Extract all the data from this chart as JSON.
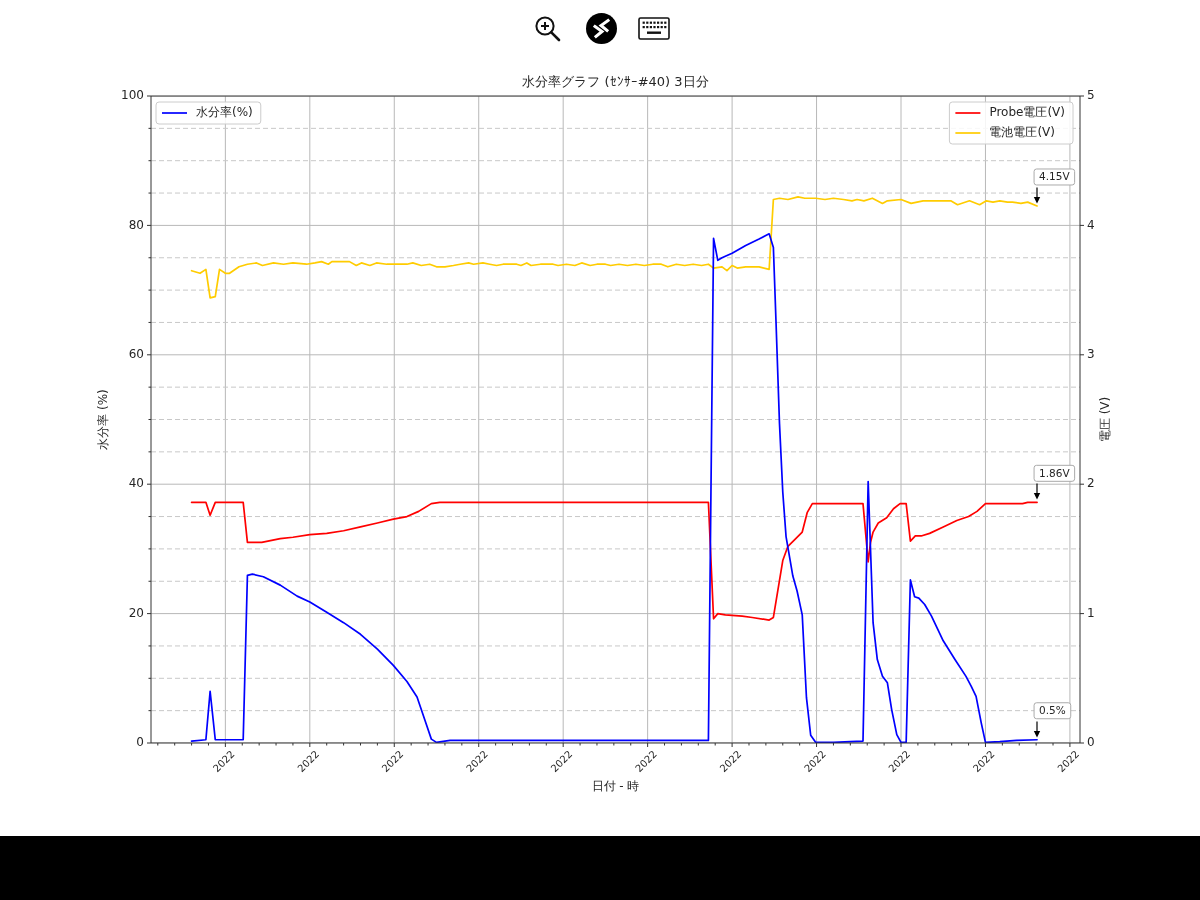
{
  "chart_data": {
    "type": "line",
    "title": "水分率グラフ (ｾﾝｻｰ#40) 3日分",
    "xlabel": "日付 - 時",
    "ylabel": "水分率 (%)",
    "y2label": "電圧 (V)",
    "xlim": [
      "2022-05-31T18:43",
      "2022-06-03T12:43"
    ],
    "xticks": [
      {
        "value": "2022-05-31T19:12",
        "label": null
      },
      {
        "value": "2022-05-31T20:24",
        "label": null
      },
      {
        "value": "2022-05-31T21:36",
        "label": null
      },
      {
        "value": "2022-05-31T22:48",
        "label": null
      },
      {
        "value": "2022-06-01T00:00",
        "label": "2022"
      },
      {
        "value": "2022-06-01T01:12",
        "label": null
      },
      {
        "value": "2022-06-01T02:24",
        "label": null
      },
      {
        "value": "2022-06-01T03:36",
        "label": null
      },
      {
        "value": "2022-06-01T04:48",
        "label": null
      },
      {
        "value": "2022-06-01T06:00",
        "label": "2022"
      },
      {
        "value": "2022-06-01T07:12",
        "label": null
      },
      {
        "value": "2022-06-01T08:24",
        "label": null
      },
      {
        "value": "2022-06-01T09:36",
        "label": null
      },
      {
        "value": "2022-06-01T10:48",
        "label": null
      },
      {
        "value": "2022-06-01T12:00",
        "label": "2022"
      },
      {
        "value": "2022-06-01T13:12",
        "label": null
      },
      {
        "value": "2022-06-01T14:24",
        "label": null
      },
      {
        "value": "2022-06-01T15:36",
        "label": null
      },
      {
        "value": "2022-06-01T16:48",
        "label": null
      },
      {
        "value": "2022-06-01T18:00",
        "label": "2022"
      },
      {
        "value": "2022-06-01T19:12",
        "label": null
      },
      {
        "value": "2022-06-01T20:24",
        "label": null
      },
      {
        "value": "2022-06-01T21:36",
        "label": null
      },
      {
        "value": "2022-06-01T22:48",
        "label": null
      },
      {
        "value": "2022-06-02T00:00",
        "label": "2022"
      },
      {
        "value": "2022-06-02T01:12",
        "label": null
      },
      {
        "value": "2022-06-02T02:24",
        "label": null
      },
      {
        "value": "2022-06-02T03:36",
        "label": null
      },
      {
        "value": "2022-06-02T04:48",
        "label": null
      },
      {
        "value": "2022-06-02T06:00",
        "label": "2022"
      },
      {
        "value": "2022-06-02T07:12",
        "label": null
      },
      {
        "value": "2022-06-02T08:24",
        "label": null
      },
      {
        "value": "2022-06-02T09:36",
        "label": null
      },
      {
        "value": "2022-06-02T10:48",
        "label": null
      },
      {
        "value": "2022-06-02T12:00",
        "label": "2022"
      },
      {
        "value": "2022-06-02T13:12",
        "label": null
      },
      {
        "value": "2022-06-02T14:24",
        "label": null
      },
      {
        "value": "2022-06-02T15:36",
        "label": null
      },
      {
        "value": "2022-06-02T16:48",
        "label": null
      },
      {
        "value": "2022-06-02T18:00",
        "label": "2022"
      },
      {
        "value": "2022-06-02T19:12",
        "label": null
      },
      {
        "value": "2022-06-02T20:24",
        "label": null
      },
      {
        "value": "2022-06-02T21:36",
        "label": null
      },
      {
        "value": "2022-06-02T22:48",
        "label": null
      },
      {
        "value": "2022-06-03T00:00",
        "label": "2022"
      },
      {
        "value": "2022-06-03T01:12",
        "label": null
      },
      {
        "value": "2022-06-03T02:24",
        "label": null
      },
      {
        "value": "2022-06-03T03:36",
        "label": null
      },
      {
        "value": "2022-06-03T04:48",
        "label": null
      },
      {
        "value": "2022-06-03T06:00",
        "label": "2022"
      },
      {
        "value": "2022-06-03T07:12",
        "label": null
      },
      {
        "value": "2022-06-03T08:24",
        "label": null
      },
      {
        "value": "2022-06-03T09:36",
        "label": null
      },
      {
        "value": "2022-06-03T10:48",
        "label": null
      },
      {
        "value": "2022-06-03T12:00",
        "label": "2022"
      }
    ],
    "ylim": [
      0,
      100
    ],
    "yticks": [
      0,
      {
        "value": 5,
        "label": null
      },
      {
        "value": 10,
        "label": null
      },
      {
        "value": 15,
        "label": null
      },
      20,
      {
        "value": 25,
        "label": null
      },
      {
        "value": 30,
        "label": null
      },
      {
        "value": 35,
        "label": null
      },
      40,
      {
        "value": 45,
        "label": null
      },
      {
        "value": 50,
        "label": null
      },
      {
        "value": 55,
        "label": null
      },
      60,
      {
        "value": 65,
        "label": null
      },
      {
        "value": 70,
        "label": null
      },
      {
        "value": 75,
        "label": null
      },
      80,
      {
        "value": 85,
        "label": null
      },
      {
        "value": 90,
        "label": null
      },
      {
        "value": 95,
        "label": null
      },
      100
    ],
    "y2lim": [
      0,
      5
    ],
    "y2ticks": [
      0,
      1,
      2,
      3,
      4,
      5
    ],
    "grid": true,
    "legend": "top",
    "marker": "none",
    "series": [
      {
        "name": "水分率(%)",
        "color": "#0000ff",
        "x": [
          "2022-05-31T21:36",
          "2022-05-31T22:37",
          "2022-05-31T22:55",
          "2022-05-31T23:17",
          "2022-06-01T01:16",
          "2022-06-01T01:34",
          "2022-06-01T01:55",
          "2022-06-01T02:42",
          "2022-06-01T03:54",
          "2022-06-01T05:06",
          "2022-06-01T06:00",
          "2022-06-01T07:12",
          "2022-06-01T08:24",
          "2022-06-01T09:36",
          "2022-06-01T10:48",
          "2022-06-01T11:56",
          "2022-06-01T12:54",
          "2022-06-01T13:37",
          "2022-06-01T14:10",
          "2022-06-01T14:38",
          "2022-06-01T15:00",
          "2022-06-01T15:58",
          "2022-06-02T10:19",
          "2022-06-02T10:41",
          "2022-06-02T10:59",
          "2022-06-02T11:17",
          "2022-06-02T12:00",
          "2022-06-02T12:58",
          "2022-06-02T13:55",
          "2022-06-02T14:38",
          "2022-06-02T14:56",
          "2022-06-02T15:07",
          "2022-06-02T15:22",
          "2022-06-02T15:36",
          "2022-06-02T15:50",
          "2022-06-02T16:19",
          "2022-06-02T16:37",
          "2022-06-02T16:59",
          "2022-06-02T17:17",
          "2022-06-02T17:35",
          "2022-06-02T17:56",
          "2022-06-02T19:12",
          "2022-06-02T20:24",
          "2022-06-02T21:18",
          "2022-06-02T21:40",
          "2022-06-02T22:01",
          "2022-06-02T22:19",
          "2022-06-02T22:41",
          "2022-06-02T23:02",
          "2022-06-02T23:20",
          "2022-06-02T23:42",
          "2022-06-03T00:00",
          "2022-06-03T00:22",
          "2022-06-03T00:40",
          "2022-06-03T00:58",
          "2022-06-03T01:16",
          "2022-06-03T01:41",
          "2022-06-03T02:10",
          "2022-06-03T03:00",
          "2022-06-03T03:50",
          "2022-06-03T04:37",
          "2022-06-03T04:59",
          "2022-06-03T05:20",
          "2022-06-03T05:42",
          "2022-06-03T06:00",
          "2022-06-03T07:01",
          "2022-06-03T08:13",
          "2022-06-03T09:40"
        ],
        "values": [
          0.3,
          0.5,
          8.0,
          0.5,
          0.5,
          25.9,
          26.1,
          25.7,
          24.4,
          22.7,
          21.8,
          20.2,
          18.6,
          16.8,
          14.5,
          12.0,
          9.5,
          7.1,
          3.6,
          0.6,
          0.1,
          0.4,
          0.4,
          78.0,
          74.6,
          75.0,
          75.7,
          76.9,
          77.9,
          78.7,
          76.6,
          65.3,
          49.4,
          38.8,
          31.9,
          25.8,
          23.5,
          19.8,
          7.0,
          1.2,
          0.1,
          0.1,
          0.2,
          0.3,
          40.4,
          18.6,
          12.9,
          10.3,
          9.3,
          5.2,
          1.3,
          0.1,
          0.1,
          25.2,
          22.6,
          22.4,
          21.4,
          19.6,
          15.8,
          12.9,
          10.3,
          8.8,
          7.2,
          3.1,
          0.1,
          0.2,
          0.4,
          0.5
        ]
      },
      {
        "name": "Probe電圧(V)",
        "color": "#ff0000",
        "axis": "y2",
        "x": [
          "2022-05-31T21:36",
          "2022-05-31T22:37",
          "2022-05-31T22:55",
          "2022-05-31T23:17",
          "2022-06-01T01:16",
          "2022-06-01T01:34",
          "2022-06-01T02:35",
          "2022-06-01T03:54",
          "2022-06-01T04:48",
          "2022-06-01T06:00",
          "2022-06-01T07:12",
          "2022-06-01T08:24",
          "2022-06-01T09:36",
          "2022-06-01T10:48",
          "2022-06-01T11:56",
          "2022-06-01T12:54",
          "2022-06-01T13:44",
          "2022-06-01T14:38",
          "2022-06-01T15:14",
          "2022-06-02T10:19",
          "2022-06-02T10:41",
          "2022-06-02T10:59",
          "2022-06-02T11:31",
          "2022-06-02T12:43",
          "2022-06-02T13:26",
          "2022-06-02T14:38",
          "2022-06-02T14:56",
          "2022-06-02T15:36",
          "2022-06-02T15:58",
          "2022-06-02T16:26",
          "2022-06-02T16:59",
          "2022-06-02T17:20",
          "2022-06-02T17:42",
          "2022-06-02T21:18",
          "2022-06-02T21:40",
          "2022-06-02T21:50",
          "2022-06-02T22:01",
          "2022-06-02T22:23",
          "2022-06-02T22:59",
          "2022-06-02T23:28",
          "2022-06-02T23:56",
          "2022-06-03T00:22",
          "2022-06-03T00:40",
          "2022-06-03T01:01",
          "2022-06-03T01:26",
          "2022-06-03T02:02",
          "2022-06-03T03:00",
          "2022-06-03T03:58",
          "2022-06-03T04:48",
          "2022-06-03T05:24",
          "2022-06-03T06:00",
          "2022-06-03T08:38",
          "2022-06-03T09:00",
          "2022-06-03T09:40"
        ],
        "values": [
          1.86,
          1.86,
          1.76,
          1.86,
          1.86,
          1.55,
          1.55,
          1.58,
          1.59,
          1.61,
          1.62,
          1.64,
          1.67,
          1.7,
          1.73,
          1.75,
          1.79,
          1.85,
          1.86,
          1.86,
          0.96,
          1.0,
          0.99,
          0.98,
          0.97,
          0.95,
          0.97,
          1.41,
          1.52,
          1.57,
          1.63,
          1.78,
          1.85,
          1.85,
          1.4,
          1.55,
          1.63,
          1.7,
          1.74,
          1.81,
          1.85,
          1.85,
          1.56,
          1.6,
          1.6,
          1.62,
          1.67,
          1.72,
          1.75,
          1.79,
          1.85,
          1.85,
          1.86,
          1.86
        ]
      },
      {
        "name": "電池電圧(V)",
        "color": "#ffcc00",
        "axis": "y2",
        "x": [
          "2022-05-31T21:36",
          "2022-05-31T22:12",
          "2022-05-31T22:37",
          "2022-05-31T22:55",
          "2022-05-31T23:17",
          "2022-05-31T23:35",
          "2022-06-01T00:00",
          "2022-06-01T00:18",
          "2022-06-01T00:58",
          "2022-06-01T01:34",
          "2022-06-01T02:13",
          "2022-06-01T02:38",
          "2022-06-01T03:25",
          "2022-06-01T04:08",
          "2022-06-01T04:48",
          "2022-06-01T05:46",
          "2022-06-01T06:22",
          "2022-06-01T06:50",
          "2022-06-01T07:19",
          "2022-06-01T07:34",
          "2022-06-01T08:49",
          "2022-06-01T09:18",
          "2022-06-01T09:40",
          "2022-06-01T10:16",
          "2022-06-01T10:44",
          "2022-06-01T11:28",
          "2022-06-01T12:54",
          "2022-06-01T13:19",
          "2022-06-01T13:55",
          "2022-06-01T14:31",
          "2022-06-01T15:00",
          "2022-06-01T15:36",
          "2022-06-01T16:12",
          "2022-06-01T16:41",
          "2022-06-01T17:17",
          "2022-06-01T17:38",
          "2022-06-01T18:18",
          "2022-06-01T18:47",
          "2022-06-01T19:16",
          "2022-06-01T19:44",
          "2022-06-01T20:42",
          "2022-06-01T21:00",
          "2022-06-01T21:25",
          "2022-06-01T21:43",
          "2022-06-01T22:23",
          "2022-06-01T23:17",
          "2022-06-01T23:38",
          "2022-06-02T00:14",
          "2022-06-02T00:50",
          "2022-06-02T01:19",
          "2022-06-02T01:55",
          "2022-06-02T02:24",
          "2022-06-02T03:00",
          "2022-06-02T03:22",
          "2022-06-02T03:58",
          "2022-06-02T04:34",
          "2022-06-02T05:10",
          "2022-06-02T05:46",
          "2022-06-02T06:22",
          "2022-06-02T06:58",
          "2022-06-02T07:26",
          "2022-06-02T08:02",
          "2022-06-02T08:38",
          "2022-06-02T09:14",
          "2022-06-02T09:50",
          "2022-06-02T10:19",
          "2022-06-02T10:41",
          "2022-06-02T11:17",
          "2022-06-02T11:38",
          "2022-06-02T12:00",
          "2022-06-02T12:22",
          "2022-06-02T12:58",
          "2022-06-02T13:55",
          "2022-06-02T14:38",
          "2022-06-02T14:56",
          "2022-06-02T15:22",
          "2022-06-02T15:58",
          "2022-06-02T16:41",
          "2022-06-02T17:10",
          "2022-06-02T17:56",
          "2022-06-02T18:36",
          "2022-06-02T19:12",
          "2022-06-02T19:55",
          "2022-06-02T20:31",
          "2022-06-02T20:53",
          "2022-06-02T21:22",
          "2022-06-02T21:58",
          "2022-06-02T22:41",
          "2022-06-02T23:02",
          "2022-06-03T00:00",
          "2022-06-03T00:43",
          "2022-06-03T01:34",
          "2022-06-03T02:24",
          "2022-06-03T02:53",
          "2022-06-03T03:32",
          "2022-06-03T04:01",
          "2022-06-03T04:52",
          "2022-06-03T05:35",
          "2022-06-03T06:04",
          "2022-06-03T06:32",
          "2022-06-03T07:01",
          "2022-06-03T07:34",
          "2022-06-03T07:55",
          "2022-06-03T08:31",
          "2022-06-03T09:00",
          "2022-06-03T09:40"
        ],
        "values": [
          3.65,
          3.63,
          3.66,
          3.44,
          3.45,
          3.66,
          3.63,
          3.63,
          3.68,
          3.7,
          3.71,
          3.69,
          3.71,
          3.7,
          3.71,
          3.7,
          3.71,
          3.72,
          3.7,
          3.72,
          3.72,
          3.69,
          3.71,
          3.69,
          3.71,
          3.7,
          3.7,
          3.71,
          3.69,
          3.7,
          3.68,
          3.68,
          3.69,
          3.7,
          3.71,
          3.7,
          3.71,
          3.7,
          3.69,
          3.7,
          3.7,
          3.69,
          3.71,
          3.69,
          3.7,
          3.7,
          3.69,
          3.7,
          3.69,
          3.71,
          3.69,
          3.7,
          3.7,
          3.69,
          3.7,
          3.69,
          3.7,
          3.69,
          3.7,
          3.7,
          3.68,
          3.7,
          3.69,
          3.7,
          3.69,
          3.7,
          3.67,
          3.68,
          3.65,
          3.69,
          3.67,
          3.68,
          3.68,
          3.66,
          4.2,
          4.21,
          4.2,
          4.22,
          4.21,
          4.21,
          4.2,
          4.21,
          4.2,
          4.19,
          4.2,
          4.19,
          4.21,
          4.17,
          4.19,
          4.2,
          4.17,
          4.19,
          4.19,
          4.19,
          4.19,
          4.16,
          4.19,
          4.16,
          4.19,
          4.18,
          4.19,
          4.18,
          4.18,
          4.17,
          4.18,
          4.15
        ]
      }
    ],
    "annotations": [
      {
        "text": "4.15V",
        "x": "2022-06-03T09:40",
        "y": 83.0
      },
      {
        "text": "1.86V",
        "x": "2022-06-03T09:40",
        "y": 37.2
      },
      {
        "text": "0.5%",
        "x": "2022-06-03T09:40",
        "y": 0.5
      }
    ]
  }
}
